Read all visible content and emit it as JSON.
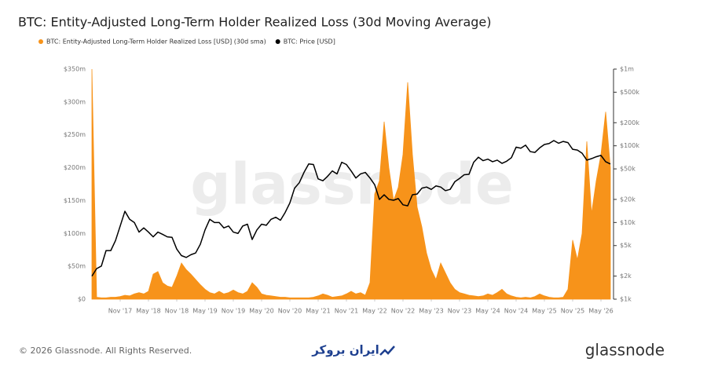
{
  "chart_data": {
    "type": "area",
    "title": "BTC: Entity-Adjusted Long-Term Holder Realized Loss (30d Moving Average)",
    "watermark": "glassnode",
    "footer": "© 2026 Glassnode. All Rights Reserved.",
    "center_logo": "ایران بروکر",
    "brand": "glassnode",
    "x": [
      "2017-05",
      "2017-06",
      "2017-07",
      "2017-08",
      "2017-09",
      "2017-10",
      "2017-11",
      "2017-12",
      "2018-01",
      "2018-02",
      "2018-03",
      "2018-04",
      "2018-05",
      "2018-06",
      "2018-07",
      "2018-08",
      "2018-09",
      "2018-10",
      "2018-11",
      "2018-12",
      "2019-01",
      "2019-02",
      "2019-03",
      "2019-04",
      "2019-05",
      "2019-06",
      "2019-07",
      "2019-08",
      "2019-09",
      "2019-10",
      "2019-11",
      "2019-12",
      "2020-01",
      "2020-02",
      "2020-03",
      "2020-04",
      "2020-05",
      "2020-06",
      "2020-07",
      "2020-08",
      "2020-09",
      "2020-10",
      "2020-11",
      "2020-12",
      "2021-01",
      "2021-02",
      "2021-03",
      "2021-04",
      "2021-05",
      "2021-06",
      "2021-07",
      "2021-08",
      "2021-09",
      "2021-10",
      "2021-11",
      "2021-12",
      "2022-01",
      "2022-02",
      "2022-03",
      "2022-04",
      "2022-05",
      "2022-06",
      "2022-07",
      "2022-08",
      "2022-09",
      "2022-10",
      "2022-11",
      "2022-12",
      "2023-01",
      "2023-02",
      "2023-03",
      "2023-04",
      "2023-05",
      "2023-06",
      "2023-07",
      "2023-08",
      "2023-09",
      "2023-10",
      "2023-11",
      "2023-12",
      "2024-01",
      "2024-02",
      "2024-03",
      "2024-04",
      "2024-05",
      "2024-06",
      "2024-07",
      "2024-08",
      "2024-09",
      "2024-10",
      "2024-11",
      "2024-12",
      "2025-01",
      "2025-02",
      "2025-03",
      "2025-04",
      "2025-05",
      "2025-06",
      "2025-07",
      "2025-08",
      "2025-09",
      "2025-10",
      "2025-11",
      "2025-12",
      "2026-01",
      "2026-02",
      "2026-03",
      "2026-04",
      "2026-05",
      "2026-06",
      "2026-07"
    ],
    "xlim": [
      "2017-05",
      "2026-07"
    ],
    "xticks": [
      {
        "value": "2017-11",
        "label": "Nov '17"
      },
      {
        "value": "2018-05",
        "label": "May '18"
      },
      {
        "value": "2018-11",
        "label": "Nov '18"
      },
      {
        "value": "2019-05",
        "label": "May '19"
      },
      {
        "value": "2019-11",
        "label": "Nov '19"
      },
      {
        "value": "2020-05",
        "label": "May '20"
      },
      {
        "value": "2020-11",
        "label": "Nov '20"
      },
      {
        "value": "2021-05",
        "label": "May '21"
      },
      {
        "value": "2021-11",
        "label": "Nov '21"
      },
      {
        "value": "2022-05",
        "label": "May '22"
      },
      {
        "value": "2022-11",
        "label": "Nov '22"
      },
      {
        "value": "2023-05",
        "label": "May '23"
      },
      {
        "value": "2023-11",
        "label": "Nov '23"
      },
      {
        "value": "2024-05",
        "label": "May '24"
      },
      {
        "value": "2024-11",
        "label": "Nov '24"
      },
      {
        "value": "2025-05",
        "label": "May '25"
      },
      {
        "value": "2025-11",
        "label": "Nov '25"
      },
      {
        "value": "2026-05",
        "label": "May '26"
      }
    ],
    "ylim": [
      0,
      350
    ],
    "yticks": [
      {
        "value": 0,
        "label": "$0"
      },
      {
        "value": 50,
        "label": "$50m"
      },
      {
        "value": 100,
        "label": "$100m"
      },
      {
        "value": 150,
        "label": "$150m"
      },
      {
        "value": 200,
        "label": "$200m"
      },
      {
        "value": 250,
        "label": "$250m"
      },
      {
        "value": 300,
        "label": "$300m"
      },
      {
        "value": 350,
        "label": "$350m"
      }
    ],
    "y2lim": [
      1000,
      1000000
    ],
    "y2log": true,
    "y2ticks": [
      {
        "value": 1000,
        "label": "$1k"
      },
      {
        "value": 2000,
        "label": "$2k"
      },
      {
        "value": 5000,
        "label": "$5k"
      },
      {
        "value": 10000,
        "label": "$10k"
      },
      {
        "value": 20000,
        "label": "$20k"
      },
      {
        "value": 50000,
        "label": "$50k"
      },
      {
        "value": 100000,
        "label": "$100k"
      },
      {
        "value": 200000,
        "label": "$200k"
      },
      {
        "value": 500000,
        "label": "$500k"
      },
      {
        "value": 1000000,
        "label": "$1m"
      }
    ],
    "series": [
      {
        "name": "BTC: Entity-Adjusted Long-Term Holder Realized Loss [USD] (30d sma)",
        "type": "area",
        "color": "#f7931a",
        "values": [
          350,
          3,
          2,
          2,
          3,
          3,
          4,
          6,
          5,
          8,
          10,
          8,
          12,
          38,
          42,
          25,
          20,
          18,
          35,
          55,
          45,
          38,
          30,
          22,
          15,
          10,
          8,
          12,
          8,
          10,
          14,
          10,
          8,
          12,
          25,
          18,
          8,
          6,
          5,
          4,
          3,
          3,
          2,
          2,
          2,
          2,
          2,
          3,
          5,
          8,
          6,
          3,
          4,
          5,
          8,
          12,
          8,
          10,
          6,
          25,
          160,
          180,
          270,
          200,
          150,
          170,
          220,
          330,
          220,
          140,
          110,
          70,
          45,
          30,
          55,
          40,
          25,
          15,
          10,
          8,
          6,
          5,
          4,
          5,
          8,
          6,
          10,
          15,
          8,
          5,
          3,
          2,
          3,
          2,
          4,
          8,
          5,
          3,
          2,
          2,
          3,
          15,
          90,
          60,
          100,
          240,
          130,
          180,
          220,
          285,
          200
        ]
      },
      {
        "name": "BTC: Price [USD]",
        "type": "line",
        "axis": "y2",
        "color": "#000000",
        "values": [
          2000,
          2500,
          2700,
          4300,
          4300,
          5800,
          9000,
          14000,
          11000,
          10000,
          7500,
          8500,
          7500,
          6500,
          7500,
          7000,
          6500,
          6400,
          4500,
          3700,
          3500,
          3800,
          4000,
          5200,
          8000,
          11000,
          10000,
          10000,
          8500,
          9000,
          7500,
          7200,
          9000,
          9500,
          6000,
          8000,
          9500,
          9200,
          11000,
          11700,
          10700,
          13500,
          18000,
          28000,
          33000,
          45000,
          58000,
          57000,
          37000,
          35000,
          40000,
          47000,
          43000,
          61000,
          57000,
          47000,
          38000,
          43000,
          45000,
          38000,
          31000,
          20000,
          23000,
          20000,
          19500,
          20500,
          17000,
          16500,
          23000,
          23500,
          28000,
          29000,
          27000,
          30000,
          29000,
          26000,
          27000,
          34000,
          37500,
          42000,
          42500,
          61000,
          71000,
          64000,
          67000,
          62000,
          65000,
          59000,
          63000,
          70000,
          96000,
          93000,
          102000,
          84000,
          82000,
          94000,
          104000,
          107000,
          117000,
          108000,
          114000,
          110000,
          90000,
          88000,
          80000,
          65000,
          68000,
          72000,
          75000,
          62000,
          58000
        ]
      }
    ]
  }
}
